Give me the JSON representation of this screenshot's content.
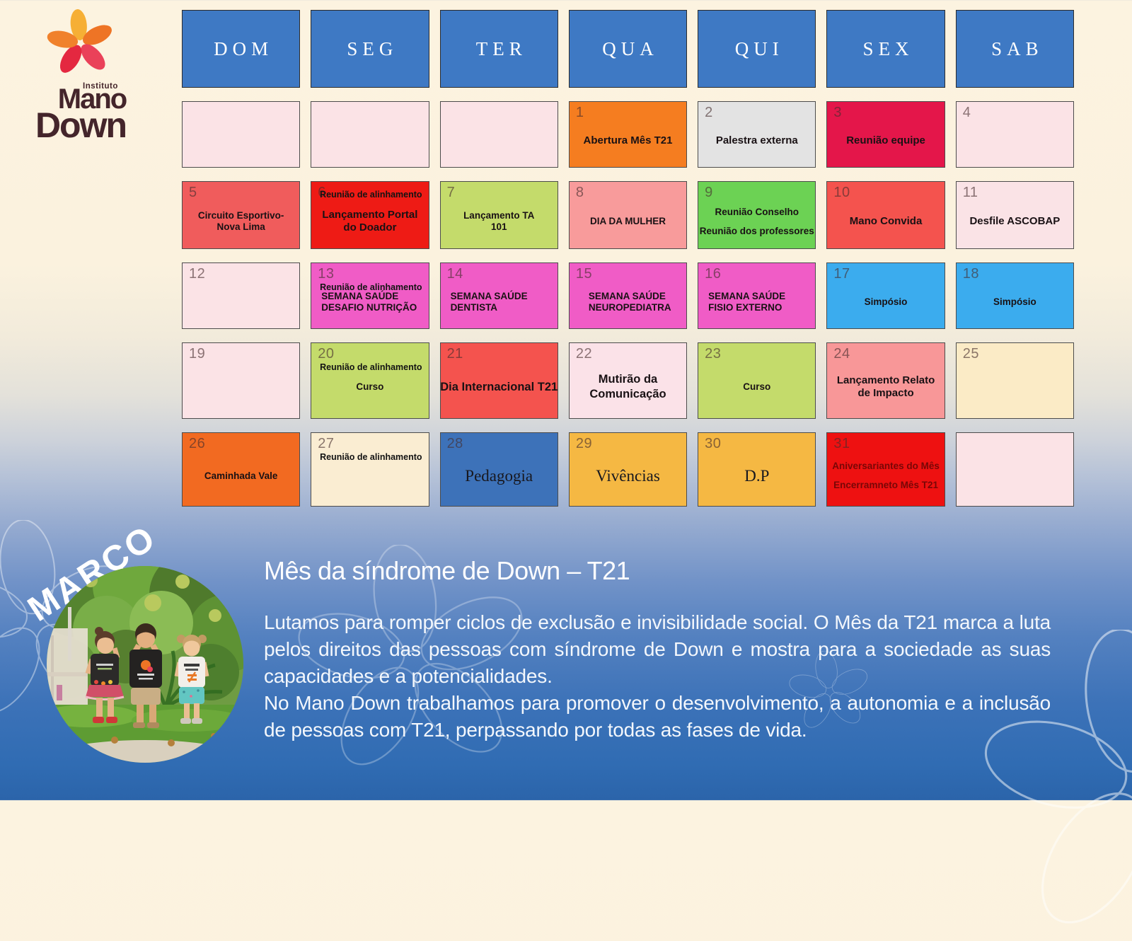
{
  "logo": {
    "institute": "Instituto",
    "mano": "Mano",
    "down": "Down"
  },
  "calendar": {
    "header_bg": "#3E79C4",
    "weekdays": [
      "DOM",
      "SEG",
      "TER",
      "QUA",
      "QUI",
      "SEX",
      "SAB"
    ],
    "cells": [
      {
        "day": "",
        "bg": "#FBE3E6",
        "lines": [],
        "cls": ""
      },
      {
        "day": "",
        "bg": "#FBE3E6",
        "lines": [],
        "cls": ""
      },
      {
        "day": "",
        "bg": "#FBE3E6",
        "lines": [],
        "cls": ""
      },
      {
        "day": "1",
        "bg": "#F57D20",
        "lines": [
          "Abertura Mês T21"
        ],
        "cls": "lg"
      },
      {
        "day": "2",
        "bg": "#E3E3E3",
        "lines": [
          "Palestra externa"
        ],
        "cls": "lg"
      },
      {
        "day": "3",
        "bg": "#E4164A",
        "lines": [
          "Reunião equipe"
        ],
        "cls": "lg"
      },
      {
        "day": "4",
        "bg": "#FBE3E6",
        "lines": [],
        "cls": ""
      },
      {
        "day": "5",
        "bg": "#F05C5C",
        "lines": [
          "Circuito Esportivo-",
          "Nova Lima"
        ],
        "cls": ""
      },
      {
        "day": "6",
        "bg": "#EE1B15",
        "small": "Reunião de alinhamento",
        "lines": [
          "Lançamento Portal",
          "do Doador"
        ],
        "cls": "lg"
      },
      {
        "day": "7",
        "bg": "#C4DB6B",
        "lines": [
          "Lançamento TA",
          "101"
        ],
        "cls": ""
      },
      {
        "day": "8",
        "bg": "#F89B9B",
        "lines": [
          "DIA DA MULHER"
        ],
        "cls": ""
      },
      {
        "day": "9",
        "bg": "#6CD254",
        "lines": [
          "Reunião Conselho",
          "Reunião dos professores"
        ],
        "cls": "spread"
      },
      {
        "day": "10",
        "bg": "#F4534E",
        "lines": [
          "Mano Convida"
        ],
        "cls": "lg"
      },
      {
        "day": "11",
        "bg": "#FAE3E6",
        "lines": [
          "Desfile ASCOBAP"
        ],
        "cls": "lg"
      },
      {
        "day": "12",
        "bg": "#FBE3E6",
        "lines": [],
        "cls": ""
      },
      {
        "day": "13",
        "bg": "#F05CC6",
        "small": "Reunião de alinhamento",
        "lines": [
          "SEMANA SAÚDE",
          "DESAFIO NUTRIÇÃO"
        ],
        "cls": "left"
      },
      {
        "day": "14",
        "bg": "#F05CC6",
        "lines": [
          "SEMANA SAÚDE",
          "DENTISTA"
        ],
        "cls": "left"
      },
      {
        "day": "15",
        "bg": "#F05CC6",
        "lines": [
          "SEMANA  SAÚDE",
          "NEUROPEDIATRA"
        ],
        "cls": "left indent"
      },
      {
        "day": "16",
        "bg": "#F05CC6",
        "lines": [
          "SEMANA SAÚDE",
          "FISIO EXTERNO"
        ],
        "cls": "left"
      },
      {
        "day": "17",
        "bg": "#3BACEE",
        "lines": [
          "Simpósio"
        ],
        "cls": ""
      },
      {
        "day": "18",
        "bg": "#3BACEE",
        "lines": [
          "Simpósio"
        ],
        "cls": ""
      },
      {
        "day": "19",
        "bg": "#FBE3E6",
        "lines": [],
        "cls": ""
      },
      {
        "day": "20",
        "bg": "#C4DB6B",
        "small": "Reunião de alinhamento",
        "lines": [
          "Curso"
        ],
        "cls": ""
      },
      {
        "day": "21",
        "bg": "#F4534E",
        "lines": [
          "Dia Internacional T21"
        ],
        "cls": "big"
      },
      {
        "day": "22",
        "bg": "#FBE2E8",
        "lines": [
          "Mutirão da",
          "Comunicação"
        ],
        "cls": "big"
      },
      {
        "day": "23",
        "bg": "#C4DB6B",
        "lines": [
          "Curso"
        ],
        "cls": ""
      },
      {
        "day": "24",
        "bg": "#F89798",
        "lines": [
          "Lançamento Relato",
          "de Impacto"
        ],
        "cls": "lg"
      },
      {
        "day": "25",
        "bg": "#FBEBC6",
        "lines": [],
        "cls": ""
      },
      {
        "day": "26",
        "bg": "#F26A21",
        "lines": [
          "Caminhada Vale"
        ],
        "cls": ""
      },
      {
        "day": "27",
        "bg": "#FAEDD2",
        "small": "Reunião de alinhamento",
        "lines": [],
        "cls": ""
      },
      {
        "day": "28",
        "bg": "#3D72B9",
        "lines": [
          "Pedagogia"
        ],
        "cls": "serif"
      },
      {
        "day": "29",
        "bg": "#F5B843",
        "lines": [
          "Vivências"
        ],
        "cls": "serif"
      },
      {
        "day": "30",
        "bg": "#F5B843",
        "lines": [
          "D.P"
        ],
        "cls": "serif"
      },
      {
        "day": "31",
        "bg": "#EE1111",
        "lines": [
          "Aniversariantes do Mês",
          "Encerramneto Mês T21"
        ],
        "cls": "dim spread"
      },
      {
        "day": "",
        "bg": "#FBE3E6",
        "lines": [],
        "cls": ""
      }
    ]
  },
  "footer": {
    "month": "MARÇO",
    "title": "Mês da síndrome de Down – T21",
    "paragraph1": "Lutamos para romper ciclos de exclusão e invisibilidade social. O Mês da T21 marca a luta pelos direitos das pessoas com síndrome de Down e mostra para a sociedade as suas capacidades e a potencialidades.",
    "paragraph2": "No Mano Down trabalhamos para promover o desenvolvimento, a autonomia e a inclusão de pessoas com T21, perpassando por todas as fases de vida."
  },
  "colors": {
    "header_blue": "#3E79C4",
    "background_top": "#FCF3E0",
    "background_bottom": "#2B64AA"
  }
}
